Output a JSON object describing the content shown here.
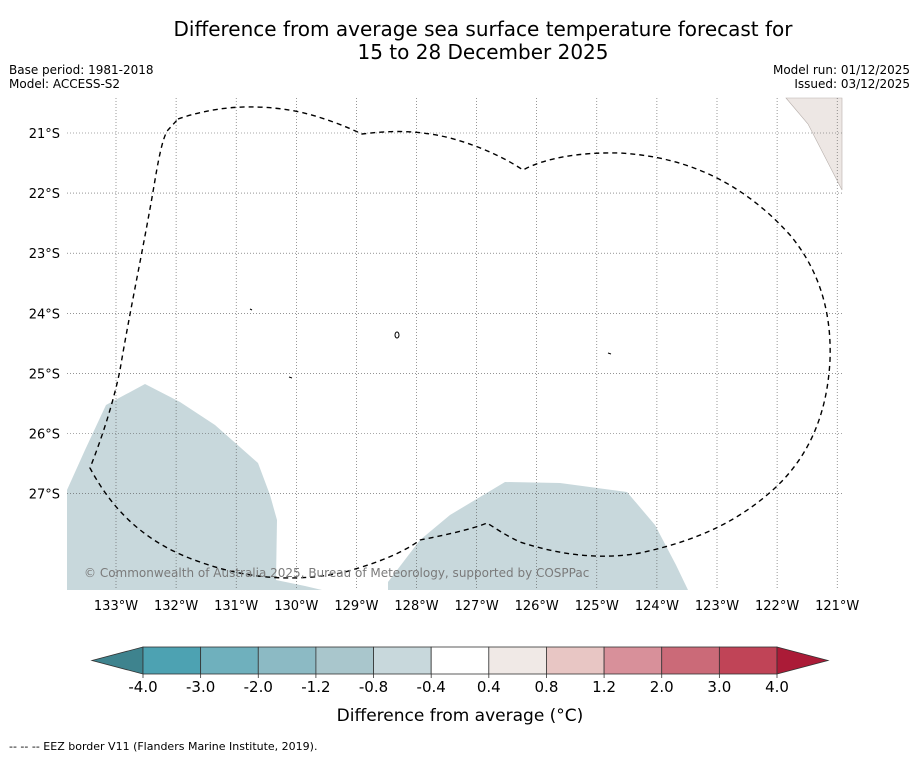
{
  "title": {
    "line1": "Difference from average sea surface temperature forecast for",
    "line2": "15 to 28 December 2025"
  },
  "meta_left": {
    "base_period": "Base period: 1981-2018",
    "model": "Model: ACCESS-S2"
  },
  "meta_right": {
    "model_run": "Model run: 01/12/2025",
    "issued": "Issued: 03/12/2025"
  },
  "map": {
    "lat_labels": [
      "21°S",
      "22°S",
      "23°S",
      "24°S",
      "25°S",
      "26°S",
      "27°S"
    ],
    "lon_labels": [
      "133°W",
      "132°W",
      "131°W",
      "130°W",
      "129°W",
      "128°W",
      "127°W",
      "126°W",
      "125°W",
      "124°W",
      "123°W",
      "122°W",
      "121°W"
    ],
    "watermark": "© Commonwealth of Australia 2025, Bureau of Meteorology, supported by COSPPac",
    "anomaly_fill_color": "#c8d8dc",
    "land_color": "#ede7e4"
  },
  "colorbar": {
    "label": "Difference from average (°C)",
    "ticks": [
      "-4.0",
      "-3.0",
      "-2.0",
      "-1.2",
      "-0.8",
      "-0.4",
      "0.4",
      "0.8",
      "1.2",
      "2.0",
      "3.0",
      "4.0"
    ],
    "colors": [
      "#4da2b2",
      "#6fb0bd",
      "#8cbac4",
      "#a9c6cc",
      "#c8d8dc",
      "#ffffff",
      "#f0e9e6",
      "#e8c6c4",
      "#d8909a",
      "#cb6a78",
      "#c04457"
    ],
    "under_color": "#3e838e",
    "over_color": "#ab1b37"
  },
  "footer": {
    "legend": "--  --  -- EEZ border V11 (Flanders Marine Institute, 2019)."
  }
}
